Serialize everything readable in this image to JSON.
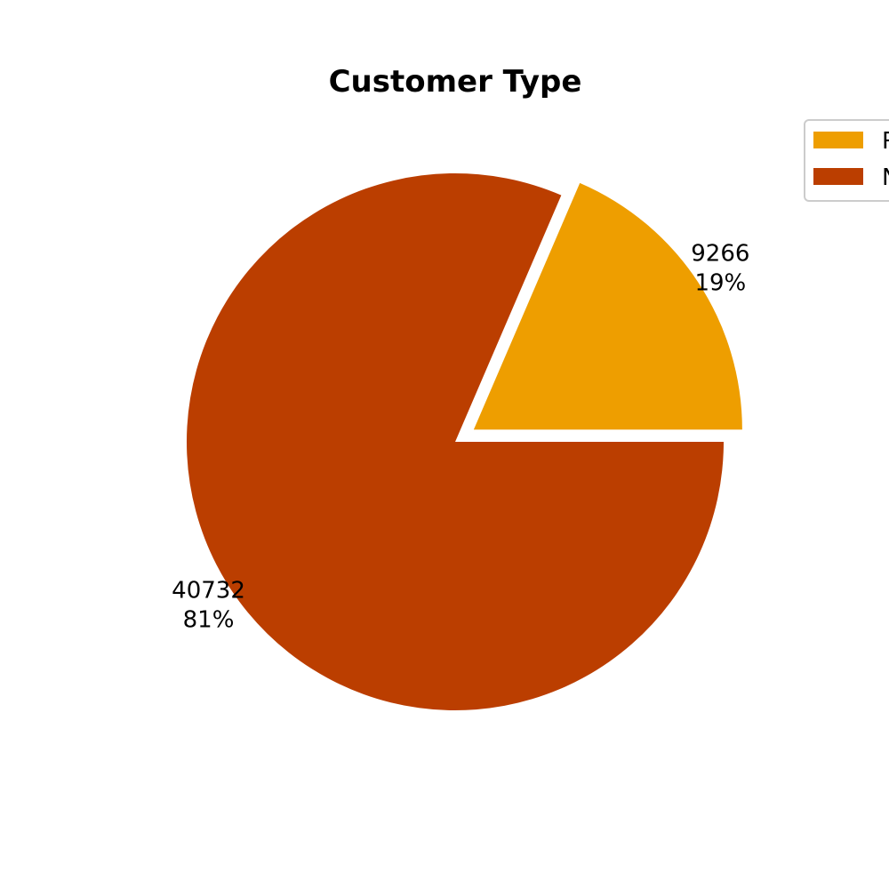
{
  "chart_data": {
    "type": "pie",
    "title": "Customer Type",
    "start_angle_deg": 0,
    "direction": "counterclockwise",
    "exploded_slice": 0,
    "legend_position": "top-right",
    "slices": [
      {
        "label": "R",
        "value": 9266,
        "percent_label": "19%",
        "color": "#EE9E00"
      },
      {
        "label": "N",
        "value": 40732,
        "percent_label": "81%",
        "color": "#BB3E00"
      }
    ]
  }
}
